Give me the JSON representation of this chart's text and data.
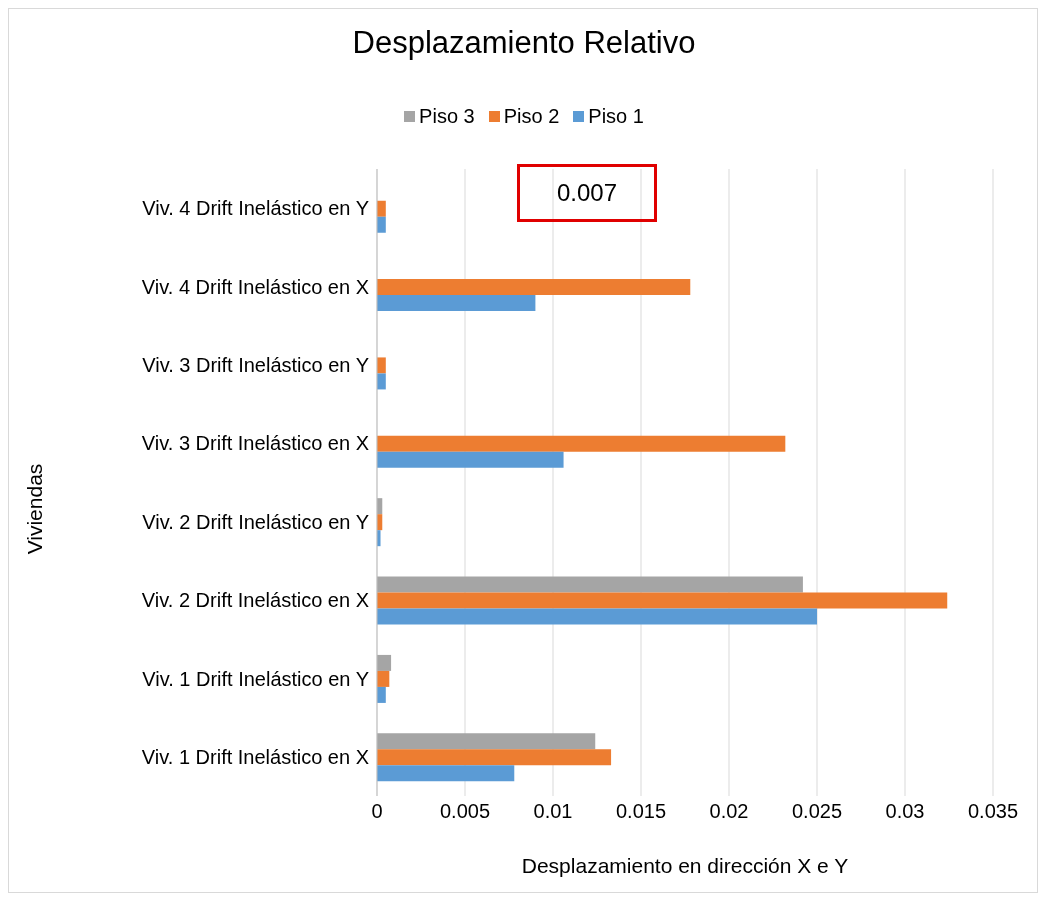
{
  "chart_data": {
    "type": "bar",
    "orientation": "horizontal",
    "title": "Desplazamiento Relativo",
    "xlabel": "Desplazamiento en dirección X e Y",
    "ylabel": "Viviendas",
    "categories": [
      "Viv. 4 Drift Inelástico en Y",
      "Viv. 4 Drift Inelástico en X",
      "Viv. 3 Drift Inelástico en Y",
      "Viv. 3 Drift Inelástico en X",
      "Viv. 2 Drift Inelástico en Y",
      "Viv. 2 Drift Inelástico en X",
      "Viv. 1 Drift Inelástico en Y",
      "Viv. 1 Drift Inelástico en X"
    ],
    "series": [
      {
        "name": "Piso 3",
        "color": "#a5a5a5",
        "values": [
          null,
          null,
          null,
          null,
          0.0003,
          0.0242,
          0.0008,
          0.0124
        ]
      },
      {
        "name": "Piso 2",
        "color": "#ed7d31",
        "values": [
          0.0005,
          0.0178,
          0.0005,
          0.0232,
          0.0003,
          0.0324,
          0.0007,
          0.0133
        ]
      },
      {
        "name": "Piso 1",
        "color": "#5b9bd5",
        "values": [
          0.0005,
          0.009,
          0.0005,
          0.0106,
          0.0002,
          0.025,
          0.0005,
          0.0078
        ]
      }
    ],
    "xlim": [
      0,
      0.035
    ],
    "xticks": [
      0,
      0.005,
      0.01,
      0.015,
      0.02,
      0.025,
      0.03,
      0.035
    ],
    "grid": "x",
    "legend": "top",
    "annotations": [
      "0.007"
    ]
  }
}
